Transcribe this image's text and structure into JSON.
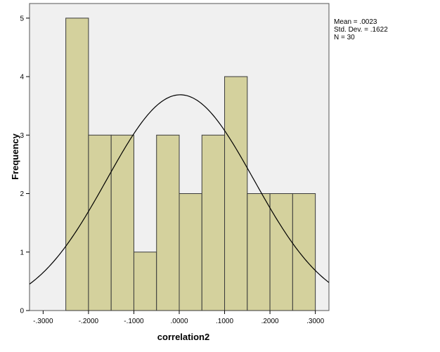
{
  "chart_data": {
    "type": "histogram",
    "xlabel": "correlation2",
    "ylabel": "Frequency",
    "bin_width": 0.05,
    "bins": [
      {
        "start": -0.25,
        "end": -0.2,
        "count": 5
      },
      {
        "start": -0.2,
        "end": -0.15,
        "count": 3
      },
      {
        "start": -0.15,
        "end": -0.1,
        "count": 3
      },
      {
        "start": -0.1,
        "end": -0.05,
        "count": 1
      },
      {
        "start": -0.05,
        "end": 0.0,
        "count": 3
      },
      {
        "start": 0.0,
        "end": 0.05,
        "count": 2
      },
      {
        "start": 0.05,
        "end": 0.1,
        "count": 3
      },
      {
        "start": 0.1,
        "end": 0.15,
        "count": 4
      },
      {
        "start": 0.15,
        "end": 0.2,
        "count": 2
      },
      {
        "start": 0.2,
        "end": 0.25,
        "count": 2
      },
      {
        "start": 0.25,
        "end": 0.3,
        "count": 2
      }
    ],
    "xlim": [
      -0.33,
      0.33
    ],
    "ylim": [
      0,
      5.25
    ],
    "xticks": [
      -0.3,
      -0.2,
      -0.1,
      0.0,
      0.1,
      0.2,
      0.3
    ],
    "xtick_labels": [
      "-.3000",
      "-.2000",
      "-.1000",
      ".0000",
      ".1000",
      ".2000",
      ".3000"
    ],
    "yticks": [
      0,
      1,
      2,
      3,
      4,
      5
    ],
    "ytick_labels": [
      "0",
      "1",
      "2",
      "3",
      "4",
      "5"
    ],
    "normal_curve": {
      "mean": 0.0023,
      "sd": 0.1622,
      "n": 30
    },
    "grid": false,
    "colors": {
      "bar_fill": "#d4d19d",
      "bar_stroke": "#3a3a3a",
      "plot_background": "#f0f0f0",
      "curve": "#000000"
    }
  },
  "stats_box": {
    "mean": "Mean = .0023",
    "std_dev": "Std. Dev. = .1622",
    "n": "N = 30"
  }
}
